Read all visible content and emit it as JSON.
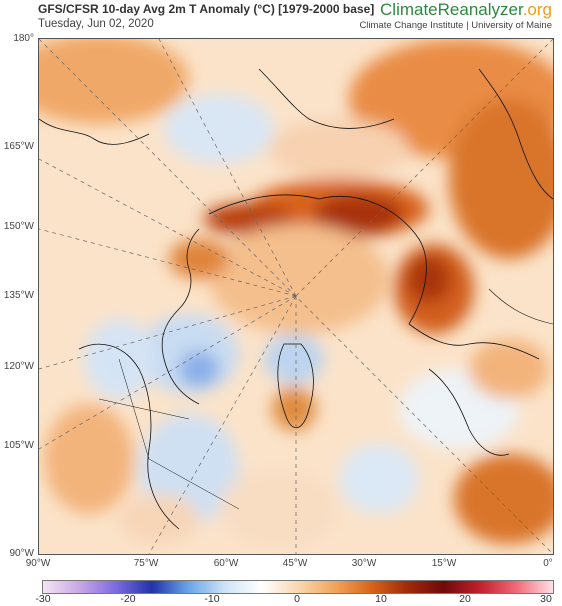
{
  "header": {
    "title": "GFS/CFSR 10-day Avg 2m T Anomaly (°C) [1979-2000 base]",
    "date": "Tuesday, Jun 02, 2020",
    "brand_main": "ClimateReanalyzer",
    "brand_tld": ".org",
    "brand_sub": "Climate Change Institute | University of Maine"
  },
  "map": {
    "latitude_labels": [
      "180°",
      "165°W",
      "150°W",
      "135°W",
      "120°W",
      "105°W",
      "90°W"
    ],
    "longitude_labels": [
      "90°W",
      "75°W",
      "60°W",
      "45°W",
      "30°W",
      "15°W",
      "0°"
    ]
  },
  "colorbar": {
    "ticks": [
      "-30",
      "-20",
      "-10",
      "0",
      "10",
      "20",
      "30"
    ],
    "colors": [
      "#f4e6f4",
      "#c9a6e6",
      "#7b6be0",
      "#2233aa",
      "#6aa6e8",
      "#cfe3f6",
      "#ffffff",
      "#f9d7b0",
      "#f2a55e",
      "#d9641c",
      "#a02a0a",
      "#6e0a0a",
      "#c2202e",
      "#f06a78",
      "#ffe0e6"
    ]
  }
}
